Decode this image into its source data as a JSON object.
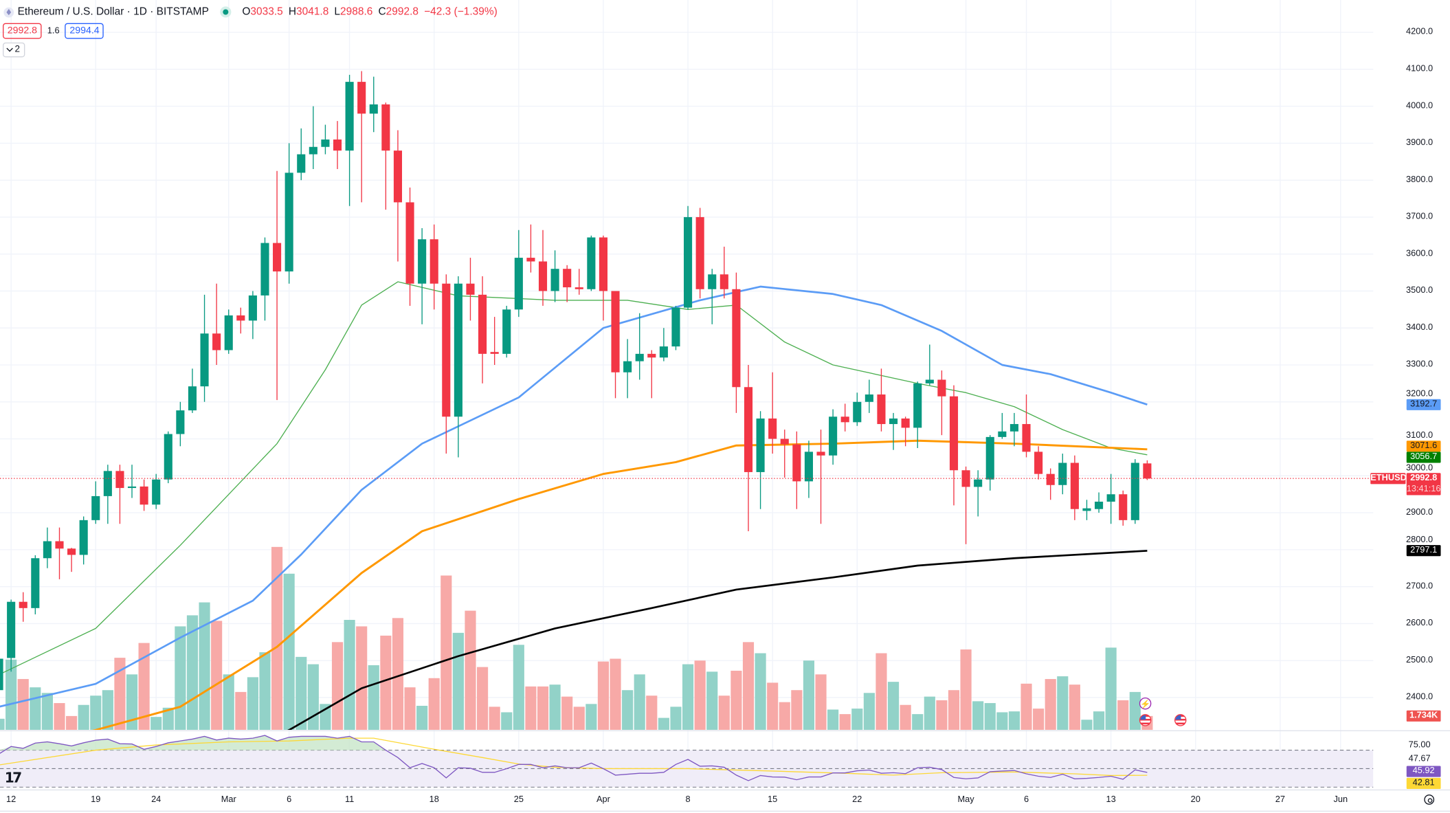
{
  "header": {
    "title": "Ethereum / U.S. Dollar · 1D · BITSTAMP",
    "ohlc": {
      "o_label": "O",
      "o": "3033.5",
      "h_label": "H",
      "h": "3041.8",
      "l_label": "L",
      "l": "2988.6",
      "c_label": "C",
      "c": "2992.8",
      "change": "−42.3 (−1.39%)"
    },
    "bid": "2992.8",
    "spread": "1.6",
    "ask": "2994.4",
    "indicators_collapsed_count": "2"
  },
  "colors": {
    "up": "#089981",
    "down": "#f23645",
    "vol_up": "#92d2c8",
    "vol_down": "#f7a9a7",
    "ma20": "#4caf50",
    "ma50": "#5b9cf6",
    "ma100": "#ff9800",
    "ma200": "#000000",
    "rsi": "#7e57c2",
    "rsi_ma": "#fdd835"
  },
  "price_axis": {
    "labels": [
      "4200.0",
      "4100.0",
      "4000.0",
      "3900.0",
      "3800.0",
      "3700.0",
      "3600.0",
      "3500.0",
      "3400.0",
      "3300.0",
      "3200.0",
      "3100.0",
      "3000.0",
      "2900.0",
      "2800.0",
      "2700.0",
      "2600.0",
      "2500.0",
      "2400.0"
    ]
  },
  "price_tags": [
    {
      "value": "3192.7",
      "bg": "#5b9cf6",
      "fg": "#131722"
    },
    {
      "value": "3071.6",
      "bg": "#ff9800",
      "fg": "#131722"
    },
    {
      "value": "3056.7",
      "bg": "#008000",
      "fg": "#ffffff"
    },
    {
      "value": "2797.1",
      "bg": "#000000",
      "fg": "#ffffff"
    }
  ],
  "last_price": {
    "symbol": "ETHUSD",
    "value": "2992.8",
    "countdown": "13:41:16"
  },
  "volume_tag": "1.734K",
  "rsi_axis": {
    "top": "75.00",
    "upper": "47.67",
    "rsi": "45.92",
    "rsi_ma": "42.81"
  },
  "time_axis": [
    {
      "label": "12",
      "date": "2024-02-12"
    },
    {
      "label": "19",
      "date": "2024-02-19"
    },
    {
      "label": "24",
      "date": "2024-02-24"
    },
    {
      "label": "Mar",
      "date": "2024-03-01"
    },
    {
      "label": "6",
      "date": "2024-03-06"
    },
    {
      "label": "11",
      "date": "2024-03-11"
    },
    {
      "label": "18",
      "date": "2024-03-18"
    },
    {
      "label": "25",
      "date": "2024-03-25"
    },
    {
      "label": "Apr",
      "date": "2024-04-01"
    },
    {
      "label": "8",
      "date": "2024-04-08"
    },
    {
      "label": "15",
      "date": "2024-04-15"
    },
    {
      "label": "22",
      "date": "2024-04-22"
    },
    {
      "label": "May",
      "date": "2024-05-01"
    },
    {
      "label": "6",
      "date": "2024-05-06"
    },
    {
      "label": "13",
      "date": "2024-05-13"
    },
    {
      "label": "20",
      "date": "2024-05-20"
    },
    {
      "label": "27",
      "date": "2024-05-27"
    },
    {
      "label": "Jun",
      "date": "2024-06-01"
    }
  ],
  "chart_data": {
    "type": "candlestick",
    "columns": [
      "date",
      "open",
      "high",
      "low",
      "close",
      "volume_k"
    ],
    "candles": [
      [
        "2024-02-11",
        2420,
        2540,
        2415,
        2505,
        1.39
      ],
      [
        "2024-02-12",
        2507,
        2665,
        2470,
        2659,
        8.79
      ],
      [
        "2024-02-13",
        2659,
        2685,
        2605,
        2642,
        6.36
      ],
      [
        "2024-02-14",
        2642,
        2785,
        2625,
        2777,
        5.32
      ],
      [
        "2024-02-15",
        2777,
        2860,
        2750,
        2823,
        4.62
      ],
      [
        "2024-02-16",
        2823,
        2860,
        2720,
        2803,
        3.35
      ],
      [
        "2024-02-17",
        2803,
        2805,
        2740,
        2786,
        1.73
      ],
      [
        "2024-02-18",
        2786,
        2890,
        2760,
        2880,
        3.12
      ],
      [
        "2024-02-19",
        2880,
        2985,
        2870,
        2945,
        4.28
      ],
      [
        "2024-02-20",
        2945,
        3030,
        2870,
        3013,
        4.97
      ],
      [
        "2024-02-21",
        3013,
        3030,
        2870,
        2967,
        9.02
      ],
      [
        "2024-02-22",
        2967,
        3030,
        2940,
        2971,
        6.94
      ],
      [
        "2024-02-23",
        2971,
        2990,
        2905,
        2922,
        10.87
      ],
      [
        "2024-02-24",
        2922,
        3005,
        2910,
        2990,
        1.62
      ],
      [
        "2024-02-25",
        2990,
        3120,
        2980,
        3113,
        2.77
      ],
      [
        "2024-02-26",
        3113,
        3200,
        3080,
        3177,
        12.95
      ],
      [
        "2024-02-27",
        3177,
        3290,
        3170,
        3242,
        14.33
      ],
      [
        "2024-02-28",
        3242,
        3490,
        3200,
        3385,
        15.95
      ],
      [
        "2024-02-29",
        3385,
        3520,
        3300,
        3340,
        13.64
      ],
      [
        "2024-03-01",
        3340,
        3450,
        3330,
        3434,
        6.94
      ],
      [
        "2024-03-02",
        3434,
        3455,
        3385,
        3420,
        4.74
      ],
      [
        "2024-03-03",
        3420,
        3500,
        3370,
        3488,
        6.59
      ],
      [
        "2024-03-04",
        3488,
        3645,
        3420,
        3630,
        9.71
      ],
      [
        "2024-03-05",
        3630,
        3825,
        3205,
        3553,
        22.89
      ],
      [
        "2024-03-06",
        3553,
        3900,
        3520,
        3820,
        19.54
      ],
      [
        "2024-03-07",
        3820,
        3940,
        3800,
        3870,
        9.13
      ],
      [
        "2024-03-08",
        3870,
        4000,
        3830,
        3890,
        8.21
      ],
      [
        "2024-03-09",
        3890,
        3950,
        3870,
        3910,
        3.24
      ],
      [
        "2024-03-10",
        3910,
        3960,
        3830,
        3880,
        10.98
      ],
      [
        "2024-03-11",
        3880,
        4085,
        3730,
        4066,
        13.76
      ],
      [
        "2024-03-12",
        4066,
        4095,
        3740,
        3980,
        12.95
      ],
      [
        "2024-03-13",
        3980,
        4080,
        3930,
        4005,
        8.09
      ],
      [
        "2024-03-14",
        4005,
        4010,
        3720,
        3880,
        11.79
      ],
      [
        "2024-03-15",
        3880,
        3935,
        3580,
        3740,
        13.99
      ],
      [
        "2024-03-16",
        3740,
        3780,
        3460,
        3520,
        5.32
      ],
      [
        "2024-03-17",
        3520,
        3670,
        3410,
        3640,
        3.01
      ],
      [
        "2024-03-18",
        3640,
        3680,
        3450,
        3520,
        6.47
      ],
      [
        "2024-03-19",
        3520,
        3545,
        3060,
        3160,
        19.31
      ],
      [
        "2024-03-20",
        3160,
        3540,
        3050,
        3520,
        12.14
      ],
      [
        "2024-03-21",
        3520,
        3590,
        3420,
        3490,
        14.91
      ],
      [
        "2024-03-22",
        3490,
        3540,
        3250,
        3330,
        7.86
      ],
      [
        "2024-03-23",
        3335,
        3430,
        3300,
        3330,
        2.89
      ],
      [
        "2024-03-24",
        3330,
        3460,
        3320,
        3450,
        2.2
      ],
      [
        "2024-03-25",
        3450,
        3665,
        3430,
        3590,
        10.64
      ],
      [
        "2024-03-26",
        3590,
        3680,
        3550,
        3580,
        5.43
      ],
      [
        "2024-03-27",
        3580,
        3665,
        3460,
        3500,
        5.43
      ],
      [
        "2024-03-28",
        3500,
        3610,
        3470,
        3560,
        5.66
      ],
      [
        "2024-03-29",
        3560,
        3570,
        3470,
        3510,
        4.16
      ],
      [
        "2024-03-30",
        3510,
        3560,
        3490,
        3505,
        2.89
      ],
      [
        "2024-03-31",
        3505,
        3650,
        3500,
        3645,
        3.24
      ],
      [
        "2024-04-01",
        3645,
        3650,
        3420,
        3500,
        8.55
      ],
      [
        "2024-04-02",
        3500,
        3500,
        3210,
        3280,
        8.9
      ],
      [
        "2024-04-03",
        3280,
        3370,
        3210,
        3310,
        4.97
      ],
      [
        "2024-04-04",
        3310,
        3440,
        3260,
        3330,
        6.94
      ],
      [
        "2024-04-05",
        3330,
        3340,
        3210,
        3320,
        4.28
      ],
      [
        "2024-04-06",
        3320,
        3400,
        3310,
        3350,
        1.5
      ],
      [
        "2024-04-07",
        3350,
        3460,
        3340,
        3455,
        2.89
      ],
      [
        "2024-04-08",
        3455,
        3730,
        3450,
        3700,
        8.21
      ],
      [
        "2024-04-09",
        3700,
        3725,
        3480,
        3505,
        8.67
      ],
      [
        "2024-04-10",
        3505,
        3560,
        3410,
        3545,
        7.28
      ],
      [
        "2024-04-11",
        3545,
        3620,
        3480,
        3505,
        4.28
      ],
      [
        "2024-04-12",
        3505,
        3550,
        3170,
        3240,
        7.4
      ],
      [
        "2024-04-13",
        3240,
        3300,
        2850,
        3010,
        10.98
      ],
      [
        "2024-04-14",
        3010,
        3175,
        2910,
        3155,
        9.59
      ],
      [
        "2024-04-15",
        3155,
        3280,
        3060,
        3100,
        5.9
      ],
      [
        "2024-04-16",
        3100,
        3125,
        2995,
        3085,
        3.47
      ],
      [
        "2024-04-17",
        3085,
        3120,
        2910,
        2985,
        4.97
      ],
      [
        "2024-04-18",
        2985,
        3095,
        2940,
        3065,
        8.67
      ],
      [
        "2024-04-19",
        3065,
        3125,
        2870,
        3055,
        6.94
      ],
      [
        "2024-04-20",
        3055,
        3180,
        3030,
        3160,
        2.54
      ],
      [
        "2024-04-21",
        3160,
        3195,
        3120,
        3145,
        1.97
      ],
      [
        "2024-04-22",
        3145,
        3225,
        3135,
        3200,
        2.66
      ],
      [
        "2024-04-23",
        3200,
        3260,
        3170,
        3220,
        4.62
      ],
      [
        "2024-04-24",
        3220,
        3290,
        3120,
        3140,
        9.59
      ],
      [
        "2024-04-25",
        3140,
        3170,
        3070,
        3155,
        6.01
      ],
      [
        "2024-04-26",
        3155,
        3160,
        3080,
        3130,
        3.12
      ],
      [
        "2024-04-27",
        3130,
        3255,
        3075,
        3250,
        1.97
      ],
      [
        "2024-04-28",
        3250,
        3355,
        3245,
        3260,
        4.16
      ],
      [
        "2024-04-29",
        3260,
        3285,
        3110,
        3215,
        3.7
      ],
      [
        "2024-04-30",
        3215,
        3245,
        2920,
        3015,
        4.97
      ],
      [
        "2024-05-01",
        3015,
        3025,
        2815,
        2970,
        10.06
      ],
      [
        "2024-05-02",
        2970,
        3015,
        2890,
        2990,
        3.58
      ],
      [
        "2024-05-03",
        2990,
        3110,
        2960,
        3105,
        3.35
      ],
      [
        "2024-05-04",
        3105,
        3170,
        3100,
        3120,
        2.2
      ],
      [
        "2024-05-05",
        3120,
        3170,
        3080,
        3140,
        2.31
      ],
      [
        "2024-05-06",
        3140,
        3220,
        3050,
        3065,
        5.78
      ],
      [
        "2024-05-07",
        3065,
        3080,
        2990,
        3005,
        2.66
      ],
      [
        "2024-05-08",
        3005,
        3020,
        2935,
        2975,
        6.36
      ],
      [
        "2024-05-09",
        2975,
        3060,
        2950,
        3035,
        6.7
      ],
      [
        "2024-05-10",
        3035,
        3055,
        2880,
        2910,
        5.66
      ],
      [
        "2024-05-11",
        2905,
        2935,
        2880,
        2912,
        1.27
      ],
      [
        "2024-05-12",
        2910,
        2955,
        2900,
        2930,
        2.31
      ],
      [
        "2024-05-13",
        2930,
        3005,
        2870,
        2950,
        10.29
      ],
      [
        "2024-05-14",
        2950,
        2960,
        2865,
        2880,
        3.7
      ],
      [
        "2024-05-15",
        2880,
        3045,
        2870,
        3035,
        4.74
      ],
      [
        "2024-05-16",
        3033.5,
        3041.8,
        2988.6,
        2992.8,
        1.734
      ]
    ],
    "ma_lines": {
      "ma20": [
        [
          "2024-02-11",
          2462
        ],
        [
          "2024-02-19",
          2587
        ],
        [
          "2024-02-26",
          2812
        ],
        [
          "2024-03-05",
          3087
        ],
        [
          "2024-03-09",
          3287
        ],
        [
          "2024-03-12",
          3462
        ],
        [
          "2024-03-15",
          3525
        ],
        [
          "2024-03-20",
          3487
        ],
        [
          "2024-03-28",
          3475
        ],
        [
          "2024-04-03",
          3475
        ],
        [
          "2024-04-08",
          3450
        ],
        [
          "2024-04-12",
          3462
        ],
        [
          "2024-04-16",
          3362
        ],
        [
          "2024-04-20",
          3300
        ],
        [
          "2024-04-27",
          3250
        ],
        [
          "2024-05-01",
          3225
        ],
        [
          "2024-05-05",
          3187
        ],
        [
          "2024-05-09",
          3125
        ],
        [
          "2024-05-13",
          3075
        ],
        [
          "2024-05-16",
          3056.7
        ]
      ],
      "ma50": [
        [
          "2024-02-11",
          2375
        ],
        [
          "2024-02-19",
          2437
        ],
        [
          "2024-02-26",
          2562
        ],
        [
          "2024-03-03",
          2662
        ],
        [
          "2024-03-07",
          2787
        ],
        [
          "2024-03-12",
          2962
        ],
        [
          "2024-03-17",
          3087
        ],
        [
          "2024-03-25",
          3212
        ],
        [
          "2024-04-01",
          3400
        ],
        [
          "2024-04-09",
          3475
        ],
        [
          "2024-04-14",
          3512
        ],
        [
          "2024-04-20",
          3492
        ],
        [
          "2024-04-24",
          3462
        ],
        [
          "2024-04-29",
          3392
        ],
        [
          "2024-05-04",
          3300
        ],
        [
          "2024-05-08",
          3275
        ],
        [
          "2024-05-13",
          3225
        ],
        [
          "2024-05-16",
          3192.7
        ]
      ],
      "ma100": [
        [
          "2024-02-12",
          2260
        ],
        [
          "2024-02-19",
          2312
        ],
        [
          "2024-02-26",
          2375
        ],
        [
          "2024-03-05",
          2537
        ],
        [
          "2024-03-12",
          2737
        ],
        [
          "2024-03-17",
          2850
        ],
        [
          "2024-03-25",
          2937
        ],
        [
          "2024-04-01",
          3005
        ],
        [
          "2024-04-07",
          3037
        ],
        [
          "2024-04-12",
          3082
        ],
        [
          "2024-04-20",
          3087
        ],
        [
          "2024-04-27",
          3095
        ],
        [
          "2024-05-05",
          3087
        ],
        [
          "2024-05-16",
          3071.6
        ]
      ],
      "ma200": [
        [
          "2024-02-26",
          2180
        ],
        [
          "2024-03-06",
          2312
        ],
        [
          "2024-03-12",
          2425
        ],
        [
          "2024-03-20",
          2512
        ],
        [
          "2024-03-28",
          2587
        ],
        [
          "2024-04-05",
          2642
        ],
        [
          "2024-04-12",
          2692
        ],
        [
          "2024-04-20",
          2725
        ],
        [
          "2024-04-27",
          2757
        ],
        [
          "2024-05-05",
          2777
        ],
        [
          "2024-05-16",
          2797.1
        ]
      ]
    },
    "rsi": {
      "start": "2024-02-11",
      "values": [
        66,
        74,
        72,
        77.7,
        79,
        77,
        74.6,
        78,
        80.8,
        82,
        77,
        76.7,
        71,
        74,
        78,
        80,
        82,
        85,
        81,
        83,
        82,
        83,
        86,
        80,
        84,
        85,
        85,
        85,
        83,
        85,
        79,
        79,
        70,
        62,
        51,
        55.6,
        51,
        40,
        51,
        50.5,
        46,
        46,
        50,
        54.6,
        54.6,
        51,
        53,
        51,
        51,
        56,
        50,
        43,
        44,
        45,
        45,
        46,
        54.6,
        60,
        52.6,
        53,
        51.5,
        43,
        37,
        42.6,
        41,
        40.8,
        38,
        41,
        41,
        45.4,
        45.4,
        47.7,
        48.5,
        45,
        45.6,
        44.6,
        51,
        51.5,
        49,
        40.5,
        39,
        40,
        46.7,
        47.4,
        48,
        44.4,
        41.8,
        40.5,
        44,
        39,
        39.5,
        40.5,
        41.8,
        38.5,
        48.7,
        45.92
      ],
      "ma": [
        [
          "2024-02-11",
          54
        ],
        [
          "2024-02-19",
          70
        ],
        [
          "2024-02-24",
          75.6
        ],
        [
          "2024-03-01",
          79
        ],
        [
          "2024-03-06",
          80
        ],
        [
          "2024-03-11",
          83
        ],
        [
          "2024-03-13",
          83
        ],
        [
          "2024-03-18",
          71
        ],
        [
          "2024-03-22",
          62
        ],
        [
          "2024-03-25",
          55
        ],
        [
          "2024-03-28",
          51.5
        ],
        [
          "2024-04-01",
          50
        ],
        [
          "2024-04-08",
          50
        ],
        [
          "2024-04-15",
          47.4
        ],
        [
          "2024-04-21",
          45
        ],
        [
          "2024-04-25",
          43
        ],
        [
          "2024-04-29",
          45.6
        ],
        [
          "2024-05-05",
          46.4
        ],
        [
          "2024-05-10",
          44.4
        ],
        [
          "2024-05-13",
          42.6
        ],
        [
          "2024-05-16",
          42.81
        ]
      ],
      "bands": [
        70,
        50,
        30
      ]
    },
    "price_range": [
      2400,
      4200
    ]
  }
}
